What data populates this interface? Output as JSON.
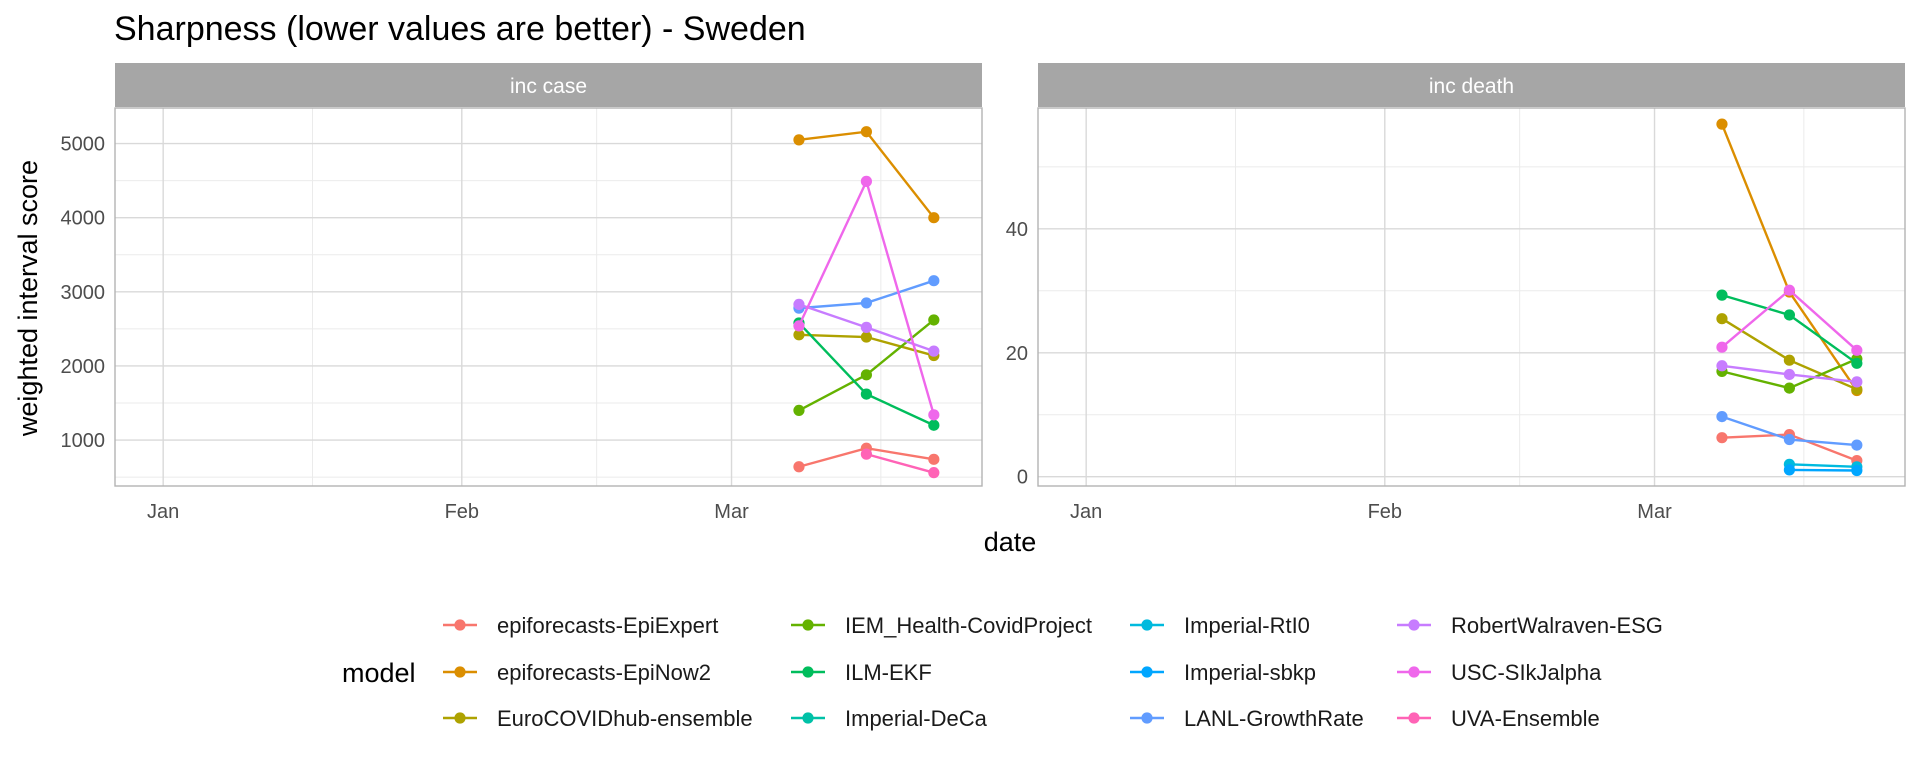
{
  "chart_data": {
    "type": "line",
    "title": "Sharpness (lower values are better) - Sweden",
    "xlabel": "date",
    "ylabel": "weighted interval score",
    "x_ticks": [
      "Jan",
      "Feb",
      "Mar"
    ],
    "x_tick_dates": [
      "2021-01-01",
      "2021-02-01",
      "2021-03-01"
    ],
    "xlim": [
      "2020-12-27",
      "2021-03-27"
    ],
    "dates": [
      "2021-03-08",
      "2021-03-15",
      "2021-03-22"
    ],
    "grid": true,
    "legend_position": "bottom",
    "legend_title": "model",
    "models": [
      {
        "name": "epiforecasts-EpiExpert",
        "color": "#F8766D"
      },
      {
        "name": "epiforecasts-EpiNow2",
        "color": "#DB8E00"
      },
      {
        "name": "EuroCOVIDhub-ensemble",
        "color": "#AEA200"
      },
      {
        "name": "IEM_Health-CovidProject",
        "color": "#64B200"
      },
      {
        "name": "ILM-EKF",
        "color": "#00BD5C"
      },
      {
        "name": "Imperial-DeCa",
        "color": "#00C1A7"
      },
      {
        "name": "Imperial-RtI0",
        "color": "#00BADE"
      },
      {
        "name": "Imperial-sbkp",
        "color": "#00A6FF"
      },
      {
        "name": "LANL-GrowthRate",
        "color": "#619CFF"
      },
      {
        "name": "RobertWalraven-ESG",
        "color": "#C77CFF"
      },
      {
        "name": "USC-SIkJalpha",
        "color": "#EF67EB"
      },
      {
        "name": "UVA-Ensemble",
        "color": "#FF63B6"
      }
    ],
    "panels": [
      {
        "label": "inc case",
        "ylim": [
          380,
          5480
        ],
        "y_ticks": [
          1000,
          2000,
          3000,
          4000,
          5000
        ],
        "y_tick_labels": [
          "1000",
          "2000",
          "3000",
          "4000",
          "5000"
        ],
        "series": [
          {
            "name": "epiforecasts-EpiExpert",
            "values": [
              640,
              890,
              740
            ]
          },
          {
            "name": "epiforecasts-EpiNow2",
            "values": [
              5050,
              5160,
              4000
            ]
          },
          {
            "name": "EuroCOVIDhub-ensemble",
            "values": [
              2420,
              2390,
              2140
            ]
          },
          {
            "name": "IEM_Health-CovidProject",
            "values": [
              1400,
              1880,
              2620
            ]
          },
          {
            "name": "ILM-EKF",
            "values": [
              2580,
              1620,
              1200
            ]
          },
          {
            "name": "LANL-GrowthRate",
            "values": [
              2780,
              2850,
              3150
            ]
          },
          {
            "name": "RobertWalraven-ESG",
            "values": [
              2830,
              2520,
              2200
            ]
          },
          {
            "name": "USC-SIkJalpha",
            "values": [
              2540,
              4490,
              1340
            ]
          },
          {
            "name": "UVA-Ensemble",
            "values": [
              null,
              810,
              560
            ]
          }
        ]
      },
      {
        "label": "inc death",
        "ylim": [
          -1.5,
          59.5
        ],
        "y_ticks": [
          0,
          20,
          40
        ],
        "y_tick_labels": [
          "0",
          "20",
          "40"
        ],
        "series": [
          {
            "name": "epiforecasts-EpiExpert",
            "values": [
              6.3,
              6.8,
              2.6
            ]
          },
          {
            "name": "epiforecasts-EpiNow2",
            "values": [
              56.9,
              29.8,
              13.9
            ]
          },
          {
            "name": "EuroCOVIDhub-ensemble",
            "values": [
              25.5,
              18.8,
              14.1
            ]
          },
          {
            "name": "IEM_Health-CovidProject",
            "values": [
              17.0,
              14.3,
              19.0
            ]
          },
          {
            "name": "ILM-EKF",
            "values": [
              29.3,
              26.1,
              18.3
            ]
          },
          {
            "name": "Imperial-RtI0",
            "values": [
              null,
              2.0,
              1.6
            ]
          },
          {
            "name": "Imperial-sbkp",
            "values": [
              null,
              1.1,
              1.0
            ]
          },
          {
            "name": "LANL-GrowthRate",
            "values": [
              9.7,
              6.0,
              5.1
            ]
          },
          {
            "name": "RobertWalraven-ESG",
            "values": [
              17.9,
              16.5,
              15.3
            ]
          },
          {
            "name": "USC-SIkJalpha",
            "values": [
              20.9,
              30.1,
              20.4
            ]
          }
        ]
      }
    ]
  }
}
